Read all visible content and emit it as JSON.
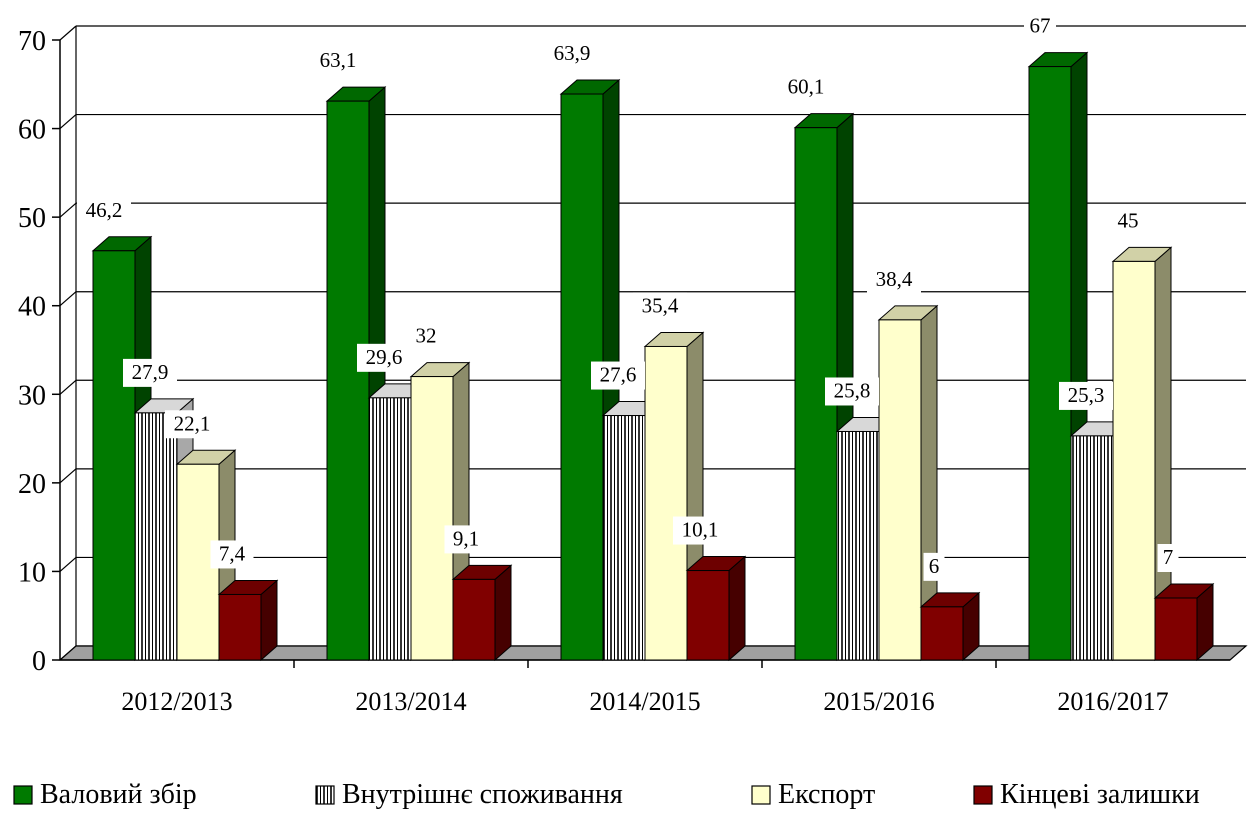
{
  "chart_data": {
    "type": "bar",
    "title": "",
    "xlabel": "",
    "ylabel": "",
    "ylim": [
      0,
      70
    ],
    "yticks": [
      0,
      10,
      20,
      30,
      40,
      50,
      60,
      70
    ],
    "grid": true,
    "legend_placement": "bottom",
    "style": "3d-clustered-column",
    "categories": [
      "2012/2013",
      "2013/2014",
      "2014/2015",
      "2015/2016",
      "2016/2017"
    ],
    "series": [
      {
        "name": "Валовий збір",
        "values": [
          46.2,
          63.1,
          63.9,
          60.1,
          67
        ],
        "labels": [
          "46,2",
          "63,1",
          "63,9",
          "60,1",
          "67"
        ],
        "color": "#007a00",
        "pattern": "solid"
      },
      {
        "name": "Внутрішнє споживання",
        "values": [
          27.9,
          29.6,
          27.6,
          25.8,
          25.3
        ],
        "labels": [
          "27,9",
          "29,6",
          "27,6",
          "25,8",
          "25,3"
        ],
        "color": "#ffffff",
        "pattern": "vertical-stripes"
      },
      {
        "name": "Експорт",
        "values": [
          22.1,
          32,
          35.4,
          38.4,
          45
        ],
        "labels": [
          "22,1",
          "32",
          "35,4",
          "38,4",
          "45"
        ],
        "color": "#ffffcc",
        "pattern": "solid"
      },
      {
        "name": "Кінцеві залишки",
        "values": [
          7.4,
          9.1,
          10.1,
          6,
          7
        ],
        "labels": [
          "7,4",
          "9,1",
          "10,1",
          "6",
          "7"
        ],
        "color": "#800000",
        "pattern": "solid"
      }
    ]
  }
}
